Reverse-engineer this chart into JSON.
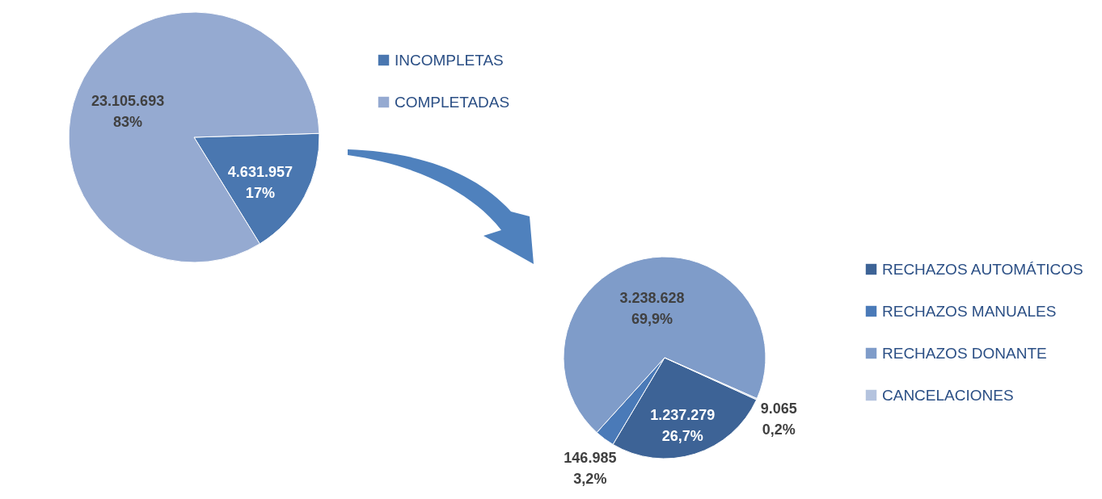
{
  "chart_data": [
    {
      "type": "pie",
      "categories": [
        "INCOMPLETAS",
        "COMPLETADAS"
      ],
      "values": [
        4631957,
        23105693
      ],
      "colors": [
        "#4a77b0",
        "#95aad1"
      ],
      "value_labels": [
        "4.631.957\n17%",
        "23.105.693\n83%"
      ],
      "legend": "right"
    },
    {
      "type": "pie",
      "categories": [
        "RECHAZOS AUTOMÁTICOS",
        "RECHAZOS MANUALES",
        "RECHAZOS DONANTE",
        "CANCELACIONES"
      ],
      "values": [
        1237279,
        146985,
        3238628,
        9065
      ],
      "colors": [
        "#3d6396",
        "#4a7ab8",
        "#7f9cc9",
        "#b4c3de"
      ],
      "value_labels": [
        "1.237.279\n26,7%",
        "146.985\n3,2%",
        "3.238.628\n69,9%",
        "9.065\n0,2%"
      ],
      "legend": "right"
    }
  ]
}
